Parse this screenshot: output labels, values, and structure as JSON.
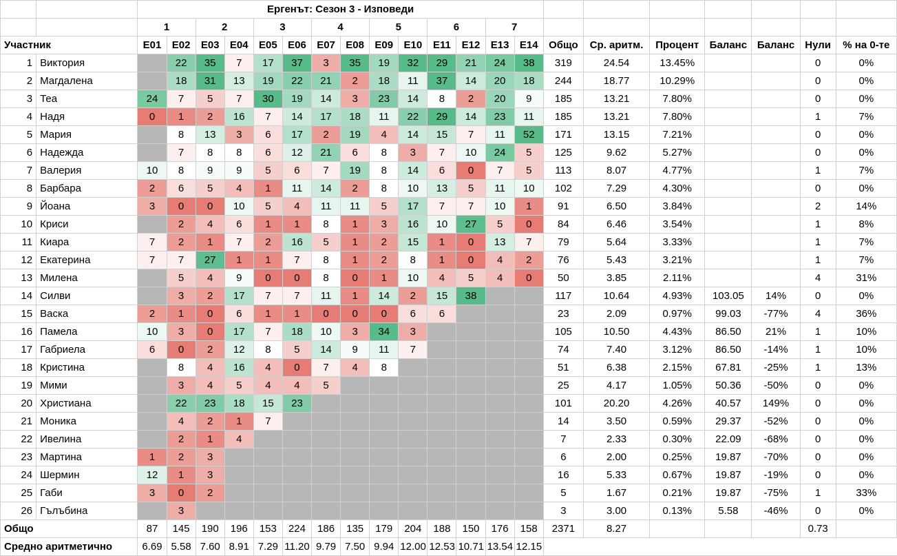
{
  "title": "Ергенът: Сезон 3 - Изповеди",
  "week_numbers": [
    "1",
    "2",
    "3",
    "4",
    "5",
    "6",
    "7"
  ],
  "headers": {
    "participant": "Участник",
    "episodes": [
      "E01",
      "E02",
      "E03",
      "E04",
      "E05",
      "E06",
      "E07",
      "E08",
      "E09",
      "E10",
      "E11",
      "E12",
      "E13",
      "E14"
    ],
    "total": "Общо",
    "mean": "Ср. аритм.",
    "percent": "Процент",
    "balance1": "Баланс",
    "balance2": "Баланс",
    "zeros": "Нули",
    "zero_pct": "% на 0-те"
  },
  "rows": [
    {
      "n": "1",
      "name": "Виктория",
      "e": [
        null,
        "22",
        "35",
        "7",
        "17",
        "37",
        "3",
        "35",
        "19",
        "32",
        "29",
        "21",
        "24",
        "38"
      ],
      "total": "319",
      "mean": "24.54",
      "pct": "13.45%",
      "bal1": "",
      "bal2": "",
      "zeros": "0",
      "zpct": "0%"
    },
    {
      "n": "2",
      "name": "Магдалена",
      "e": [
        null,
        "18",
        "31",
        "13",
        "19",
        "22",
        "21",
        "2",
        "18",
        "11",
        "37",
        "14",
        "20",
        "18"
      ],
      "total": "244",
      "mean": "18.77",
      "pct": "10.29%",
      "bal1": "",
      "bal2": "",
      "zeros": "0",
      "zpct": "0%"
    },
    {
      "n": "3",
      "name": "Теа",
      "e": [
        "24",
        "7",
        "5",
        "7",
        "30",
        "19",
        "14",
        "3",
        "23",
        "14",
        "8",
        "2",
        "20",
        "9"
      ],
      "total": "185",
      "mean": "13.21",
      "pct": "7.80%",
      "bal1": "",
      "bal2": "",
      "zeros": "0",
      "zpct": "0%"
    },
    {
      "n": "4",
      "name": "Надя",
      "e": [
        "0",
        "1",
        "2",
        "16",
        "7",
        "14",
        "17",
        "18",
        "11",
        "22",
        "29",
        "14",
        "23",
        "11"
      ],
      "total": "185",
      "mean": "13.21",
      "pct": "7.80%",
      "bal1": "",
      "bal2": "",
      "zeros": "1",
      "zpct": "7%"
    },
    {
      "n": "5",
      "name": "Мария",
      "e": [
        null,
        "8",
        "13",
        "3",
        "6",
        "17",
        "2",
        "19",
        "4",
        "14",
        "15",
        "7",
        "11",
        "52"
      ],
      "total": "171",
      "mean": "13.15",
      "pct": "7.21%",
      "bal1": "",
      "bal2": "",
      "zeros": "0",
      "zpct": "0%"
    },
    {
      "n": "6",
      "name": "Надежда",
      "e": [
        null,
        "7",
        "8",
        "8",
        "6",
        "12",
        "21",
        "6",
        "8",
        "3",
        "7",
        "10",
        "24",
        "5"
      ],
      "total": "125",
      "mean": "9.62",
      "pct": "5.27%",
      "bal1": "",
      "bal2": "",
      "zeros": "0",
      "zpct": "0%"
    },
    {
      "n": "7",
      "name": "Валерия",
      "e": [
        "10",
        "8",
        "9",
        "9",
        "5",
        "6",
        "7",
        "19",
        "8",
        "14",
        "6",
        "0",
        "7",
        "5"
      ],
      "total": "113",
      "mean": "8.07",
      "pct": "4.77%",
      "bal1": "",
      "bal2": "",
      "zeros": "1",
      "zpct": "7%"
    },
    {
      "n": "8",
      "name": "Барбара",
      "e": [
        "2",
        "6",
        "5",
        "4",
        "1",
        "11",
        "14",
        "2",
        "8",
        "10",
        "13",
        "5",
        "11",
        "10"
      ],
      "total": "102",
      "mean": "7.29",
      "pct": "4.30%",
      "bal1": "",
      "bal2": "",
      "zeros": "0",
      "zpct": "0%"
    },
    {
      "n": "9",
      "name": "Йоана",
      "e": [
        "3",
        "0",
        "0",
        "10",
        "5",
        "4",
        "11",
        "11",
        "5",
        "17",
        "7",
        "7",
        "10",
        "1"
      ],
      "total": "91",
      "mean": "6.50",
      "pct": "3.84%",
      "bal1": "",
      "bal2": "",
      "zeros": "2",
      "zpct": "14%"
    },
    {
      "n": "10",
      "name": "Криси",
      "e": [
        null,
        "2",
        "4",
        "6",
        "1",
        "1",
        "8",
        "1",
        "3",
        "16",
        "10",
        "27",
        "5",
        "0"
      ],
      "total": "84",
      "mean": "6.46",
      "pct": "3.54%",
      "bal1": "",
      "bal2": "",
      "zeros": "1",
      "zpct": "8%"
    },
    {
      "n": "11",
      "name": "Киара",
      "e": [
        "7",
        "2",
        "1",
        "7",
        "2",
        "16",
        "5",
        "1",
        "2",
        "15",
        "1",
        "0",
        "13",
        "7"
      ],
      "total": "79",
      "mean": "5.64",
      "pct": "3.33%",
      "bal1": "",
      "bal2": "",
      "zeros": "1",
      "zpct": "7%"
    },
    {
      "n": "12",
      "name": "Екатерина",
      "e": [
        "7",
        "7",
        "27",
        "1",
        "1",
        "7",
        "8",
        "1",
        "2",
        "8",
        "1",
        "0",
        "4",
        "2"
      ],
      "total": "76",
      "mean": "5.43",
      "pct": "3.21%",
      "bal1": "",
      "bal2": "",
      "zeros": "1",
      "zpct": "7%"
    },
    {
      "n": "13",
      "name": "Милена",
      "e": [
        null,
        "5",
        "4",
        "9",
        "0",
        "0",
        "8",
        "0",
        "1",
        "10",
        "4",
        "5",
        "4",
        "0"
      ],
      "total": "50",
      "mean": "3.85",
      "pct": "2.11%",
      "bal1": "",
      "bal2": "",
      "zeros": "4",
      "zpct": "31%"
    },
    {
      "n": "14",
      "name": "Силви",
      "e": [
        null,
        "3",
        "2",
        "17",
        "7",
        "7",
        "11",
        "1",
        "14",
        "2",
        "15",
        "38",
        null,
        null
      ],
      "total": "117",
      "mean": "10.64",
      "pct": "4.93%",
      "bal1": "103.05",
      "bal2": "14%",
      "zeros": "0",
      "zpct": "0%"
    },
    {
      "n": "15",
      "name": "Васка",
      "e": [
        "2",
        "1",
        "0",
        "6",
        "1",
        "1",
        "0",
        "0",
        "0",
        "6",
        "6",
        null,
        null,
        null
      ],
      "total": "23",
      "mean": "2.09",
      "pct": "0.97%",
      "bal1": "99.03",
      "bal2": "-77%",
      "zeros": "4",
      "zpct": "36%"
    },
    {
      "n": "16",
      "name": "Памела",
      "e": [
        "10",
        "3",
        "0",
        "17",
        "7",
        "18",
        "10",
        "3",
        "34",
        "3",
        null,
        null,
        null,
        null
      ],
      "total": "105",
      "mean": "10.50",
      "pct": "4.43%",
      "bal1": "86.50",
      "bal2": "21%",
      "zeros": "1",
      "zpct": "10%"
    },
    {
      "n": "17",
      "name": "Габриела",
      "e": [
        "6",
        "0",
        "2",
        "12",
        "8",
        "5",
        "14",
        "9",
        "11",
        "7",
        null,
        null,
        null,
        null
      ],
      "total": "74",
      "mean": "7.40",
      "pct": "3.12%",
      "bal1": "86.50",
      "bal2": "-14%",
      "zeros": "1",
      "zpct": "10%"
    },
    {
      "n": "18",
      "name": "Кристина",
      "e": [
        null,
        "8",
        "4",
        "16",
        "4",
        "0",
        "7",
        "4",
        "8",
        null,
        null,
        null,
        null,
        null
      ],
      "total": "51",
      "mean": "6.38",
      "pct": "2.15%",
      "bal1": "67.81",
      "bal2": "-25%",
      "zeros": "1",
      "zpct": "13%"
    },
    {
      "n": "19",
      "name": "Мими",
      "e": [
        null,
        "3",
        "4",
        "5",
        "4",
        "4",
        "5",
        null,
        null,
        null,
        null,
        null,
        null,
        null
      ],
      "total": "25",
      "mean": "4.17",
      "pct": "1.05%",
      "bal1": "50.36",
      "bal2": "-50%",
      "zeros": "0",
      "zpct": "0%"
    },
    {
      "n": "20",
      "name": "Христиана",
      "e": [
        null,
        "22",
        "23",
        "18",
        "15",
        "23",
        null,
        null,
        null,
        null,
        null,
        null,
        null,
        null
      ],
      "total": "101",
      "mean": "20.20",
      "pct": "4.26%",
      "bal1": "40.57",
      "bal2": "149%",
      "zeros": "0",
      "zpct": "0%"
    },
    {
      "n": "21",
      "name": "Моника",
      "e": [
        null,
        "4",
        "2",
        "1",
        "7",
        null,
        null,
        null,
        null,
        null,
        null,
        null,
        null,
        null
      ],
      "total": "14",
      "mean": "3.50",
      "pct": "0.59%",
      "bal1": "29.37",
      "bal2": "-52%",
      "zeros": "0",
      "zpct": "0%"
    },
    {
      "n": "22",
      "name": "Ивелина",
      "e": [
        null,
        "2",
        "1",
        "4",
        null,
        null,
        null,
        null,
        null,
        null,
        null,
        null,
        null,
        null
      ],
      "total": "7",
      "mean": "2.33",
      "pct": "0.30%",
      "bal1": "22.09",
      "bal2": "-68%",
      "zeros": "0",
      "zpct": "0%"
    },
    {
      "n": "23",
      "name": "Мартина",
      "e": [
        "1",
        "2",
        "3",
        null,
        null,
        null,
        null,
        null,
        null,
        null,
        null,
        null,
        null,
        null
      ],
      "total": "6",
      "mean": "2.00",
      "pct": "0.25%",
      "bal1": "19.87",
      "bal2": "-70%",
      "zeros": "0",
      "zpct": "0%"
    },
    {
      "n": "24",
      "name": "Шермин",
      "e": [
        "12",
        "1",
        "3",
        null,
        null,
        null,
        null,
        null,
        null,
        null,
        null,
        null,
        null,
        null
      ],
      "total": "16",
      "mean": "5.33",
      "pct": "0.67%",
      "bal1": "19.87",
      "bal2": "-19%",
      "zeros": "0",
      "zpct": "0%"
    },
    {
      "n": "25",
      "name": "Габи",
      "e": [
        "3",
        "0",
        "2",
        null,
        null,
        null,
        null,
        null,
        null,
        null,
        null,
        null,
        null,
        null
      ],
      "total": "5",
      "mean": "1.67",
      "pct": "0.21%",
      "bal1": "19.87",
      "bal2": "-75%",
      "zeros": "1",
      "zpct": "33%"
    },
    {
      "n": "26",
      "name": "Гълъбина",
      "e": [
        null,
        "3",
        null,
        null,
        null,
        null,
        null,
        null,
        null,
        null,
        null,
        null,
        null,
        null
      ],
      "total": "3",
      "mean": "3.00",
      "pct": "0.13%",
      "bal1": "5.58",
      "bal2": "-46%",
      "zeros": "0",
      "zpct": "0%"
    }
  ],
  "totals_row": {
    "label": "Общо",
    "episodes": [
      "87",
      "145",
      "190",
      "196",
      "153",
      "224",
      "186",
      "135",
      "179",
      "204",
      "188",
      "150",
      "176",
      "158"
    ],
    "total": "2371",
    "mean": "8.27",
    "zeros": "0.73"
  },
  "avg_row": {
    "label": "Средно аритметично",
    "episodes": [
      "6.69",
      "5.58",
      "7.60",
      "8.91",
      "7.29",
      "11.20",
      "9.79",
      "7.50",
      "9.94",
      "12.00",
      "12.53",
      "10.71",
      "13.54",
      "12.15"
    ]
  },
  "colors": {
    "gray": "#b7b7b7",
    "low": "#e67c73",
    "mid": "#ffffff",
    "high": "#57bb8a"
  }
}
